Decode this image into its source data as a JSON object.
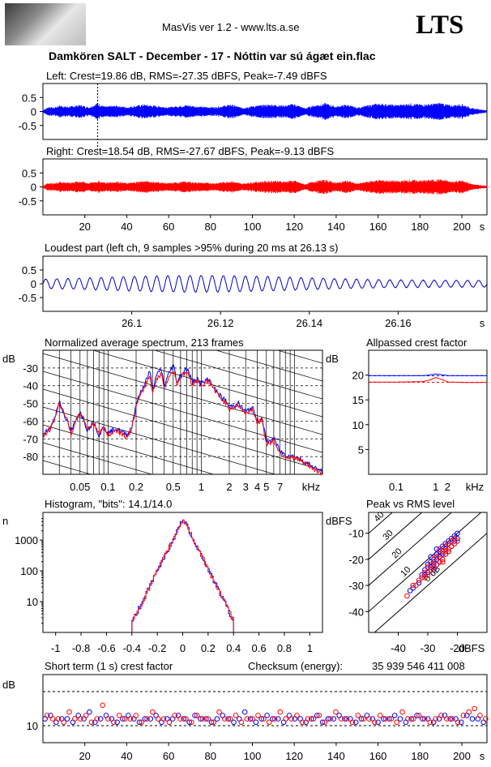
{
  "header": {
    "app_title": "MasVis ver 1.2 - www.lts.a.se",
    "brand": "LTS",
    "file_title": "Damkören SALT - December - 17 - Nóttin var sú ágæt ein.flac"
  },
  "colors": {
    "left": "#0000ff",
    "right": "#ff0000",
    "trace": "#0000cc"
  },
  "chart_data": [
    {
      "id": "left",
      "type": "line",
      "title": "Left: Crest=19.86 dB, RMS=-27.35 dBFS, Peak=-7.49 dBFS",
      "xlim": [
        0,
        212
      ],
      "ylim": [
        -1,
        1
      ],
      "yticks": [
        "0.5",
        "0",
        "-0.5"
      ],
      "marker_s": 26.13,
      "envelope_s": [
        0,
        3,
        5,
        8,
        12,
        18,
        22,
        26,
        30,
        35,
        40,
        48,
        55,
        60,
        68,
        75,
        82,
        90,
        95,
        100,
        105,
        110,
        115,
        120,
        125,
        130,
        135,
        140,
        145,
        150,
        155,
        160,
        165,
        170,
        175,
        180,
        185,
        190,
        195,
        200,
        205,
        212
      ],
      "envelope_amp": [
        0.05,
        0.18,
        0.14,
        0.22,
        0.18,
        0.24,
        0.16,
        0.3,
        0.18,
        0.22,
        0.16,
        0.26,
        0.2,
        0.16,
        0.24,
        0.18,
        0.16,
        0.26,
        0.14,
        0.2,
        0.24,
        0.26,
        0.22,
        0.28,
        0.12,
        0.24,
        0.3,
        0.18,
        0.26,
        0.14,
        0.22,
        0.3,
        0.26,
        0.24,
        0.3,
        0.26,
        0.28,
        0.32,
        0.22,
        0.28,
        0.12,
        0.04
      ]
    },
    {
      "id": "right",
      "type": "line",
      "title": "Right: Crest=18.54 dB, RMS=-27.67 dBFS, Peak=-9.13 dBFS",
      "xlim": [
        0,
        212
      ],
      "ylim": [
        -1,
        1
      ],
      "yticks": [
        "0.5",
        "0",
        "-0.5"
      ],
      "xticks": [
        "20",
        "40",
        "60",
        "80",
        "100",
        "120",
        "140",
        "160",
        "180",
        "200"
      ],
      "xunit": "s",
      "envelope_s": [
        0,
        3,
        5,
        8,
        12,
        18,
        22,
        26,
        30,
        35,
        40,
        48,
        55,
        60,
        68,
        75,
        82,
        90,
        95,
        100,
        105,
        110,
        115,
        120,
        125,
        130,
        135,
        140,
        145,
        150,
        155,
        160,
        165,
        170,
        175,
        180,
        185,
        190,
        195,
        200,
        205,
        212
      ],
      "envelope_amp": [
        0.05,
        0.16,
        0.12,
        0.2,
        0.16,
        0.22,
        0.14,
        0.22,
        0.16,
        0.2,
        0.14,
        0.22,
        0.18,
        0.14,
        0.2,
        0.16,
        0.14,
        0.22,
        0.12,
        0.18,
        0.2,
        0.24,
        0.2,
        0.24,
        0.1,
        0.22,
        0.26,
        0.16,
        0.24,
        0.12,
        0.2,
        0.26,
        0.24,
        0.22,
        0.26,
        0.24,
        0.26,
        0.28,
        0.2,
        0.24,
        0.1,
        0.04
      ]
    },
    {
      "id": "loudest",
      "type": "line",
      "title": "Loudest part (left  ch, 9 samples >95% during 20 ms at 26.13 s)",
      "xlim": [
        26.08,
        26.18
      ],
      "ylim": [
        -1,
        1
      ],
      "yticks": [
        "0.5",
        "0",
        "-0.5"
      ],
      "xticks": [
        "26.1",
        "26.12",
        "26.14",
        "26.16"
      ],
      "xunit": "s",
      "freq_hz": 400,
      "amplitude": 0.3
    },
    {
      "id": "spectrum",
      "type": "line",
      "title": "Normalized average spectrum, 213 frames",
      "ylabel": "dB",
      "xunit": "kHz",
      "xlim_khz": [
        0.02,
        20
      ],
      "ylim": [
        -90,
        -20
      ],
      "yticks": [
        "-30",
        "-40",
        "-50",
        "-60",
        "-70",
        "-80"
      ],
      "xticks": [
        "0.05",
        "0.1",
        "0.2",
        "0.5",
        "1",
        "2",
        "3",
        "4",
        "5",
        "7"
      ],
      "freq_khz": [
        0.02,
        0.025,
        0.03,
        0.035,
        0.04,
        0.05,
        0.06,
        0.07,
        0.08,
        0.09,
        0.1,
        0.12,
        0.14,
        0.16,
        0.18,
        0.2,
        0.22,
        0.25,
        0.28,
        0.3,
        0.33,
        0.37,
        0.4,
        0.45,
        0.5,
        0.55,
        0.6,
        0.7,
        0.8,
        0.9,
        1.0,
        1.2,
        1.4,
        1.6,
        1.8,
        2.0,
        2.5,
        3.0,
        3.5,
        4.0,
        4.5,
        5.0,
        6.0,
        7.0,
        8.0,
        10,
        12,
        15,
        20
      ],
      "series": [
        {
          "name": "left",
          "values": [
            -68,
            -62,
            -49,
            -58,
            -66,
            -54,
            -65,
            -60,
            -68,
            -63,
            -67,
            -64,
            -66,
            -68,
            -63,
            -50,
            -45,
            -38,
            -32,
            -42,
            -35,
            -30,
            -40,
            -33,
            -28,
            -38,
            -34,
            -30,
            -38,
            -36,
            -39,
            -36,
            -42,
            -46,
            -48,
            -52,
            -50,
            -55,
            -52,
            -60,
            -58,
            -72,
            -70,
            -77,
            -79,
            -80,
            -82,
            -85,
            -89
          ]
        },
        {
          "name": "right",
          "values": [
            -69,
            -63,
            -50,
            -57,
            -67,
            -55,
            -64,
            -61,
            -67,
            -64,
            -68,
            -65,
            -67,
            -69,
            -64,
            -52,
            -46,
            -40,
            -34,
            -43,
            -37,
            -33,
            -41,
            -35,
            -31,
            -39,
            -35,
            -32,
            -39,
            -37,
            -40,
            -37,
            -43,
            -47,
            -49,
            -53,
            -51,
            -56,
            -53,
            -61,
            -59,
            -73,
            -71,
            -78,
            -80,
            -81,
            -83,
            -86,
            -90
          ]
        }
      ]
    },
    {
      "id": "allpass",
      "type": "line",
      "title": "Allpassed crest factor",
      "ylabel": "dB",
      "xunit": "kHz",
      "ylim": [
        0,
        25
      ],
      "yticks": [
        "20",
        "15",
        "10",
        "5"
      ],
      "xticks": [
        "0.1",
        "1",
        "2"
      ],
      "xlim_khz": [
        0.02,
        20
      ],
      "series": [
        {
          "name": "left",
          "freq_khz": [
            0.02,
            0.1,
            0.5,
            1,
            2,
            5,
            20
          ],
          "values": [
            19.9,
            19.9,
            19.9,
            20.2,
            19.9,
            19.9,
            19.9
          ]
        },
        {
          "name": "right",
          "freq_khz": [
            0.02,
            0.1,
            0.5,
            1,
            2,
            5,
            20
          ],
          "values": [
            18.6,
            18.6,
            18.7,
            19.5,
            18.6,
            18.5,
            18.5
          ]
        }
      ],
      "ref_left": 19.86,
      "ref_right": 18.54
    },
    {
      "id": "histogram",
      "type": "line",
      "title": "Histogram, \"bits\": 14.1/14.0",
      "ylabel": "n",
      "xlim": [
        -1.1,
        1.1
      ],
      "yticks": [
        "1000",
        "100",
        "10"
      ],
      "xticks": [
        "-1",
        "-0.8",
        "-0.6",
        "-0.4",
        "-0.2",
        "0",
        "0.2",
        "0.4",
        "0.6",
        "0.8",
        "1"
      ],
      "peak_count": 5000,
      "half_width": 0.4
    },
    {
      "id": "peak_rms",
      "type": "scatter",
      "title": "Peak vs RMS level",
      "ylabel": "dBFS",
      "xunit": "dBFS",
      "xlim": [
        -50,
        -10
      ],
      "ylim": [
        -48,
        -2
      ],
      "yticks": [
        "-10",
        "-20",
        "-30",
        "-40"
      ],
      "xticks": [
        "-40",
        "-30",
        "-20"
      ],
      "diag_labels": [
        "40",
        "30",
        "20",
        "10",
        "0 dB"
      ],
      "rms_left": [
        -36,
        -35,
        -33,
        -32,
        -31,
        -30,
        -30,
        -29,
        -29,
        -28,
        -28,
        -27,
        -27,
        -27,
        -26,
        -26,
        -25,
        -25,
        -25,
        -24,
        -24,
        -23,
        -23,
        -22,
        -22,
        -21,
        -21,
        -20,
        -20,
        -31,
        -30,
        -29,
        -28,
        -27,
        -26,
        -24,
        -23
      ],
      "peak_left": [
        -32,
        -31,
        -29,
        -26,
        -24,
        -22,
        -25,
        -23,
        -21,
        -21,
        -24,
        -18,
        -20,
        -22,
        -17,
        -19,
        -15,
        -18,
        -20,
        -16,
        -14,
        -13,
        -17,
        -12,
        -15,
        -11,
        -13,
        -10,
        -12,
        -26,
        -23,
        -19,
        -22,
        -16,
        -21,
        -18,
        -14
      ],
      "rms_right": [
        -37,
        -34,
        -33,
        -32,
        -31,
        -30,
        -30,
        -29,
        -29,
        -28,
        -28,
        -27,
        -27,
        -26,
        -26,
        -26,
        -25,
        -25,
        -24,
        -24,
        -23,
        -23,
        -22,
        -22,
        -21,
        -21,
        -20,
        -31,
        -29,
        -28,
        -27,
        -25,
        -24,
        -23,
        -35
      ],
      "peak_right": [
        -34,
        -30,
        -28,
        -27,
        -25,
        -23,
        -26,
        -22,
        -24,
        -20,
        -23,
        -19,
        -22,
        -18,
        -21,
        -16,
        -17,
        -20,
        -15,
        -18,
        -14,
        -17,
        -13,
        -15,
        -12,
        -14,
        -13,
        -27,
        -24,
        -20,
        -19,
        -21,
        -17,
        -16,
        -30
      ]
    },
    {
      "id": "short_term",
      "type": "scatter",
      "title": "Short term (1 s) crest factor",
      "checksum_label": "Checksum (energy):",
      "checksum_value": "35 939 546 411 008",
      "ylabel": "dB",
      "ylim": [
        5,
        25
      ],
      "yticks": [
        "10"
      ],
      "xticks": [
        "20",
        "40",
        "60",
        "80",
        "100",
        "120",
        "140",
        "160",
        "180",
        "200"
      ],
      "xunit": "s",
      "xlim": [
        0,
        212
      ],
      "ref_lines_db": [
        20,
        10
      ],
      "left": [
        12,
        13,
        11,
        12,
        12,
        11,
        13,
        12,
        14,
        11,
        12,
        13,
        12,
        11,
        12,
        13,
        12,
        11,
        12,
        12,
        13,
        11,
        12,
        12,
        13,
        12,
        11,
        13,
        12,
        12,
        11,
        12,
        13,
        12,
        11,
        12,
        14,
        12,
        11,
        12,
        13,
        12,
        12,
        11,
        13,
        12,
        12,
        11,
        12,
        13,
        11,
        12,
        12,
        13,
        12,
        12,
        11,
        12,
        13,
        12,
        11,
        12,
        12,
        13,
        12,
        11,
        12,
        13,
        12,
        12,
        11,
        12,
        13,
        12,
        12,
        11,
        13,
        12,
        12,
        11
      ],
      "right": [
        13,
        12,
        12,
        11,
        14,
        12,
        12,
        13,
        11,
        12,
        16,
        12,
        11,
        13,
        12,
        12,
        13,
        11,
        12,
        14,
        12,
        12,
        11,
        13,
        12,
        12,
        11,
        13,
        12,
        12,
        11,
        14,
        12,
        12,
        13,
        11,
        12,
        12,
        13,
        12,
        11,
        12,
        14,
        12,
        12,
        13,
        11,
        12,
        12,
        13,
        11,
        12,
        14,
        12,
        12,
        11,
        13,
        12,
        12,
        11,
        13,
        12,
        12,
        11,
        14,
        12,
        12,
        13,
        12,
        11,
        12,
        13,
        12,
        12,
        11,
        13,
        14,
        15,
        13,
        12
      ]
    }
  ]
}
